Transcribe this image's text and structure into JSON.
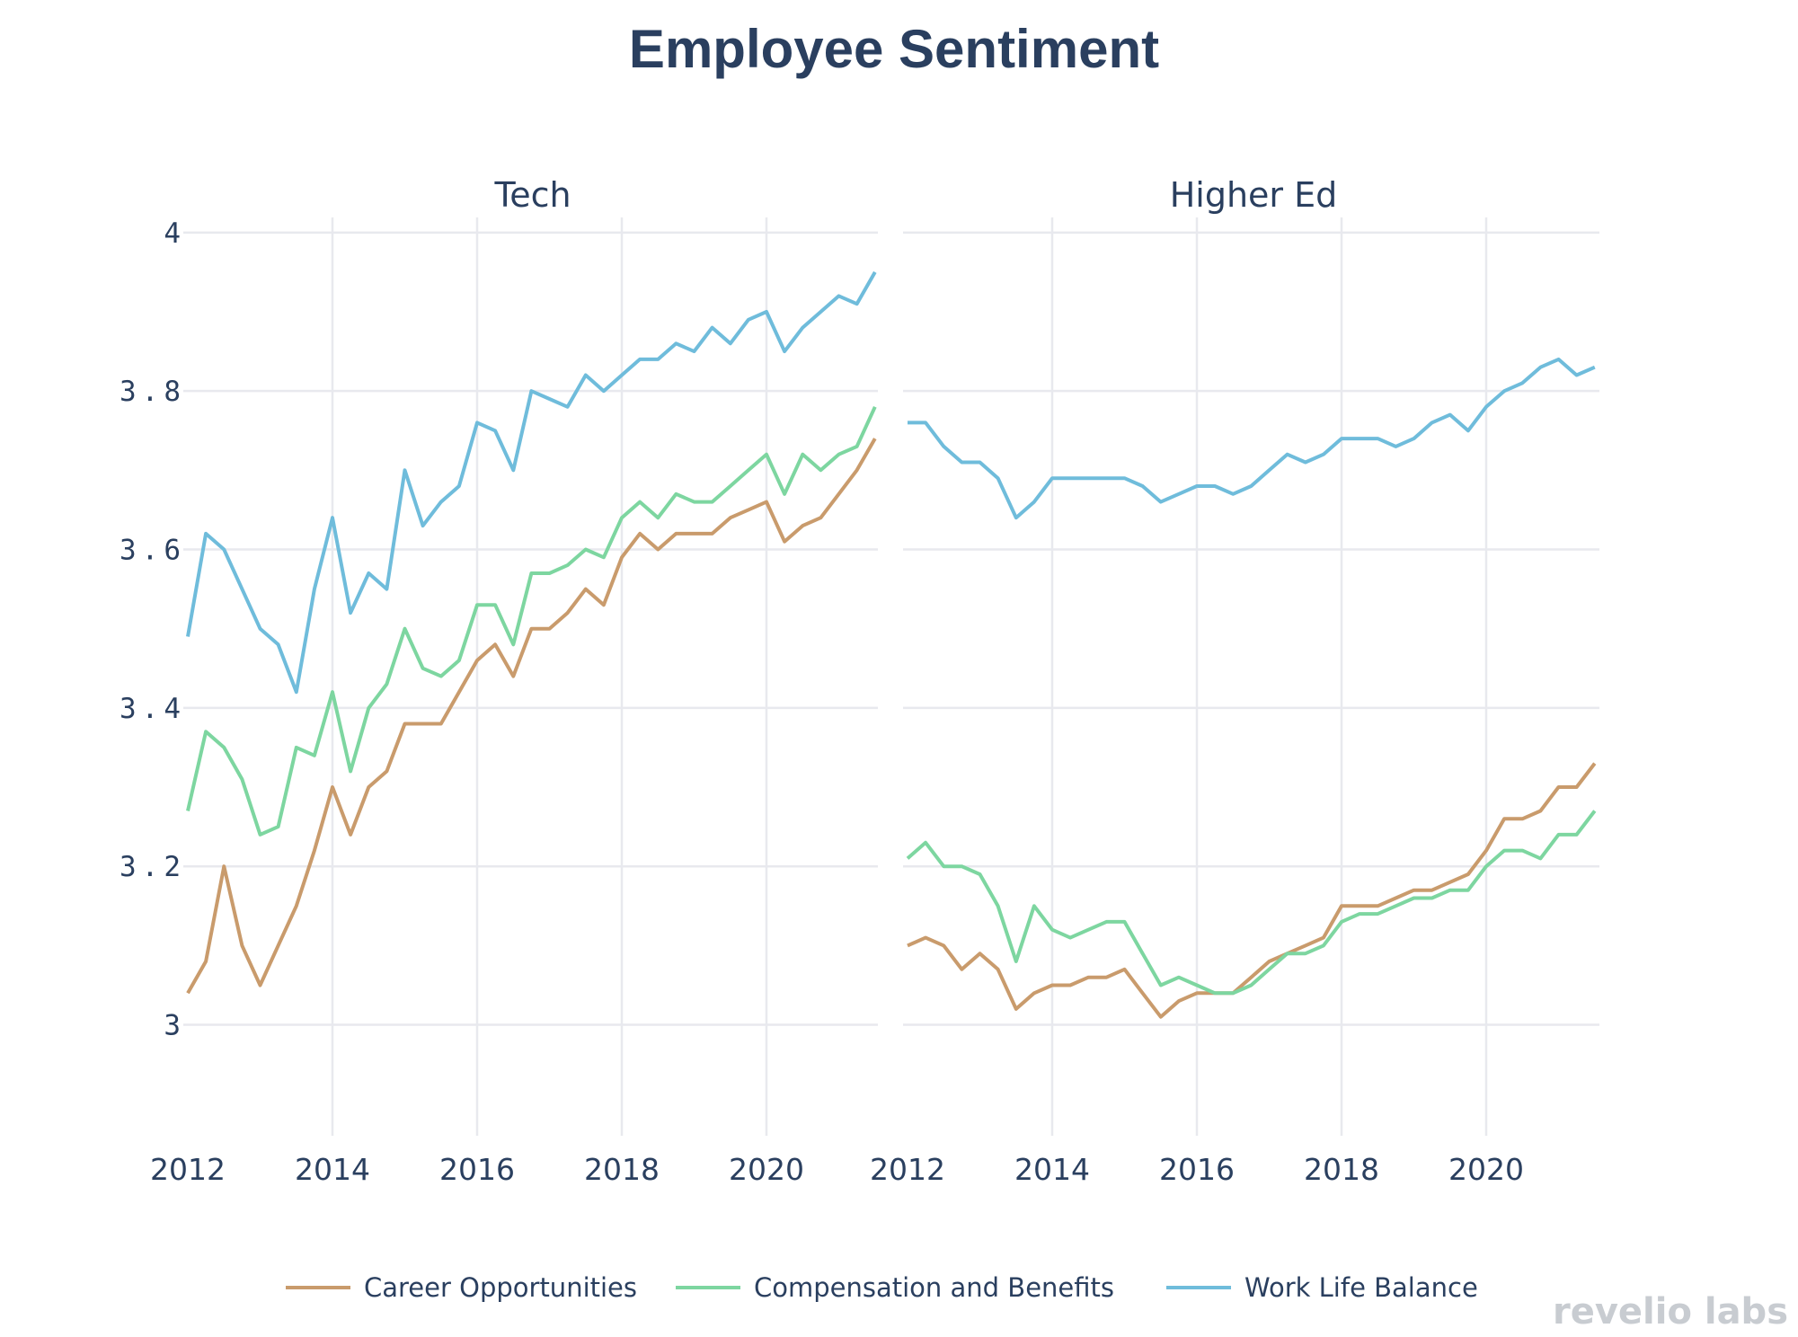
{
  "chart_data": {
    "type": "line",
    "title": "Employee Sentiment",
    "ylim": [
      2.86,
      4.01
    ],
    "xlim": [
      2012,
      2021.5
    ],
    "yticks": [
      "3",
      "3.2",
      "3.4",
      "3.6",
      "3.8",
      "4"
    ],
    "ytick_values": [
      3,
      3.2,
      3.4,
      3.6,
      3.8,
      4
    ],
    "xticks": [
      "2012",
      "2014",
      "2016",
      "2018",
      "2020"
    ],
    "xtick_values": [
      2012,
      2014,
      2016,
      2018,
      2020
    ],
    "grid": true,
    "legend_placement": "bottom",
    "colors": {
      "Career Opportunities": "#c99b6c",
      "Compensation and Benefits": "#7dd6a0",
      "Work Life Balance": "#6fbcdb"
    },
    "x": [
      2012.0,
      2012.25,
      2012.5,
      2012.75,
      2013.0,
      2013.25,
      2013.5,
      2013.75,
      2014.0,
      2014.25,
      2014.5,
      2014.75,
      2015.0,
      2015.25,
      2015.5,
      2015.75,
      2016.0,
      2016.25,
      2016.5,
      2016.75,
      2017.0,
      2017.25,
      2017.5,
      2017.75,
      2018.0,
      2018.25,
      2018.5,
      2018.75,
      2019.0,
      2019.25,
      2019.5,
      2019.75,
      2020.0,
      2020.25,
      2020.5,
      2020.75,
      2021.0,
      2021.25,
      2021.5
    ],
    "panels": [
      {
        "title": "Tech",
        "series": [
          {
            "name": "Career Opportunities",
            "values": [
              3.04,
              3.08,
              3.2,
              3.1,
              3.05,
              3.1,
              3.15,
              3.22,
              3.3,
              3.24,
              3.3,
              3.32,
              3.38,
              3.38,
              3.38,
              3.42,
              3.46,
              3.48,
              3.44,
              3.5,
              3.5,
              3.52,
              3.55,
              3.53,
              3.59,
              3.62,
              3.6,
              3.62,
              3.62,
              3.62,
              3.64,
              3.65,
              3.66,
              3.61,
              3.63,
              3.64,
              3.67,
              3.7,
              3.74
            ]
          },
          {
            "name": "Compensation and Benefits",
            "values": [
              3.27,
              3.37,
              3.35,
              3.31,
              3.24,
              3.25,
              3.35,
              3.34,
              3.42,
              3.32,
              3.4,
              3.43,
              3.5,
              3.45,
              3.44,
              3.46,
              3.53,
              3.53,
              3.48,
              3.57,
              3.57,
              3.58,
              3.6,
              3.59,
              3.64,
              3.66,
              3.64,
              3.67,
              3.66,
              3.66,
              3.68,
              3.7,
              3.72,
              3.67,
              3.72,
              3.7,
              3.72,
              3.73,
              3.78
            ]
          },
          {
            "name": "Work Life Balance",
            "values": [
              3.49,
              3.62,
              3.6,
              3.55,
              3.5,
              3.48,
              3.42,
              3.55,
              3.64,
              3.52,
              3.57,
              3.55,
              3.7,
              3.63,
              3.66,
              3.68,
              3.76,
              3.75,
              3.7,
              3.8,
              3.79,
              3.78,
              3.82,
              3.8,
              3.82,
              3.84,
              3.84,
              3.86,
              3.85,
              3.88,
              3.86,
              3.89,
              3.9,
              3.85,
              3.88,
              3.9,
              3.92,
              3.91,
              3.95
            ]
          }
        ]
      },
      {
        "title": "Higher Ed",
        "series": [
          {
            "name": "Career Opportunities",
            "values": [
              3.1,
              3.11,
              3.1,
              3.07,
              3.09,
              3.07,
              3.02,
              3.04,
              3.05,
              3.05,
              3.06,
              3.06,
              3.07,
              3.04,
              3.01,
              3.03,
              3.04,
              3.04,
              3.04,
              3.06,
              3.08,
              3.09,
              3.1,
              3.11,
              3.15,
              3.15,
              3.15,
              3.16,
              3.17,
              3.17,
              3.18,
              3.19,
              3.22,
              3.26,
              3.26,
              3.27,
              3.3,
              3.3,
              3.33
            ]
          },
          {
            "name": "Compensation and Benefits",
            "values": [
              3.21,
              3.23,
              3.2,
              3.2,
              3.19,
              3.15,
              3.08,
              3.15,
              3.12,
              3.11,
              3.12,
              3.13,
              3.13,
              3.09,
              3.05,
              3.06,
              3.05,
              3.04,
              3.04,
              3.05,
              3.07,
              3.09,
              3.09,
              3.1,
              3.13,
              3.14,
              3.14,
              3.15,
              3.16,
              3.16,
              3.17,
              3.17,
              3.2,
              3.22,
              3.22,
              3.21,
              3.24,
              3.24,
              3.27
            ]
          },
          {
            "name": "Work Life Balance",
            "values": [
              3.76,
              3.76,
              3.73,
              3.71,
              3.71,
              3.69,
              3.64,
              3.66,
              3.69,
              3.69,
              3.69,
              3.69,
              3.69,
              3.68,
              3.66,
              3.67,
              3.68,
              3.68,
              3.67,
              3.68,
              3.7,
              3.72,
              3.71,
              3.72,
              3.74,
              3.74,
              3.74,
              3.73,
              3.74,
              3.76,
              3.77,
              3.75,
              3.78,
              3.8,
              3.81,
              3.83,
              3.84,
              3.82,
              3.83
            ]
          }
        ]
      }
    ],
    "legend": [
      "Career Opportunities",
      "Compensation and Benefits",
      "Work Life Balance"
    ]
  },
  "logo": "revelio labs"
}
